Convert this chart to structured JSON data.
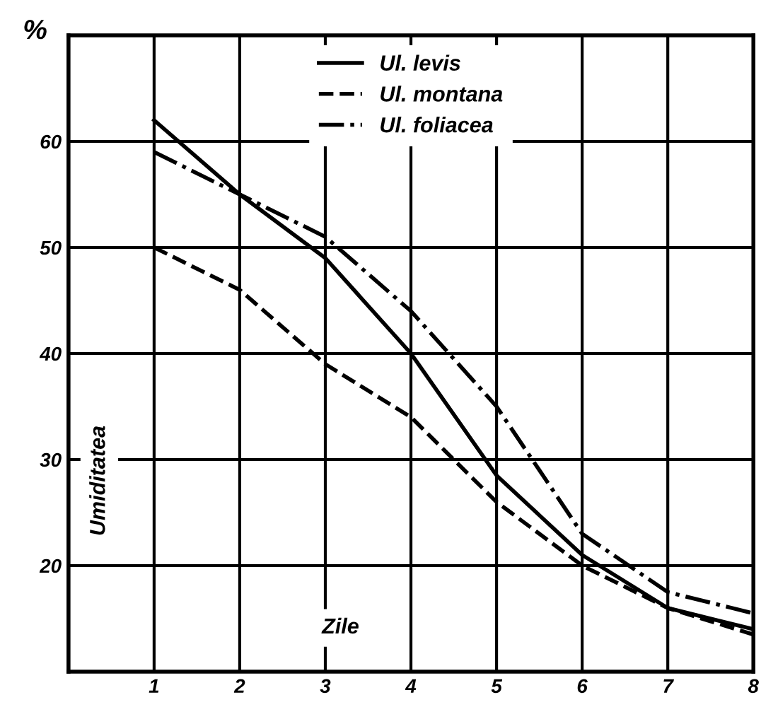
{
  "chart_data": {
    "type": "line",
    "xlabel": "Zile",
    "ylabel": "Umiditatea",
    "annotations": [
      "%"
    ],
    "x": [
      1,
      2,
      3,
      4,
      5,
      6,
      7,
      8
    ],
    "series": [
      {
        "name": "Ul. levis",
        "color": "#000000",
        "line_style": "solid",
        "values": [
          62,
          55,
          49,
          40,
          28.5,
          21,
          16,
          14
        ]
      },
      {
        "name": "Ul. montana",
        "color": "#000000",
        "line_style": "dashed",
        "values": [
          50,
          46,
          39,
          34,
          26,
          20,
          16,
          13.5
        ]
      },
      {
        "name": "Ul. foliacea",
        "color": "#000000",
        "line_style": "dashdot",
        "values": [
          59,
          55,
          51,
          44,
          35,
          23,
          17.5,
          15.5
        ]
      }
    ],
    "xlim": [
      0,
      8
    ],
    "xticks": [
      1,
      2,
      3,
      4,
      5,
      6,
      7,
      8
    ],
    "ylim": [
      10,
      70
    ],
    "yticks": [
      20,
      30,
      40,
      50,
      60
    ],
    "grid": true,
    "legend": "top",
    "marker": "none"
  }
}
